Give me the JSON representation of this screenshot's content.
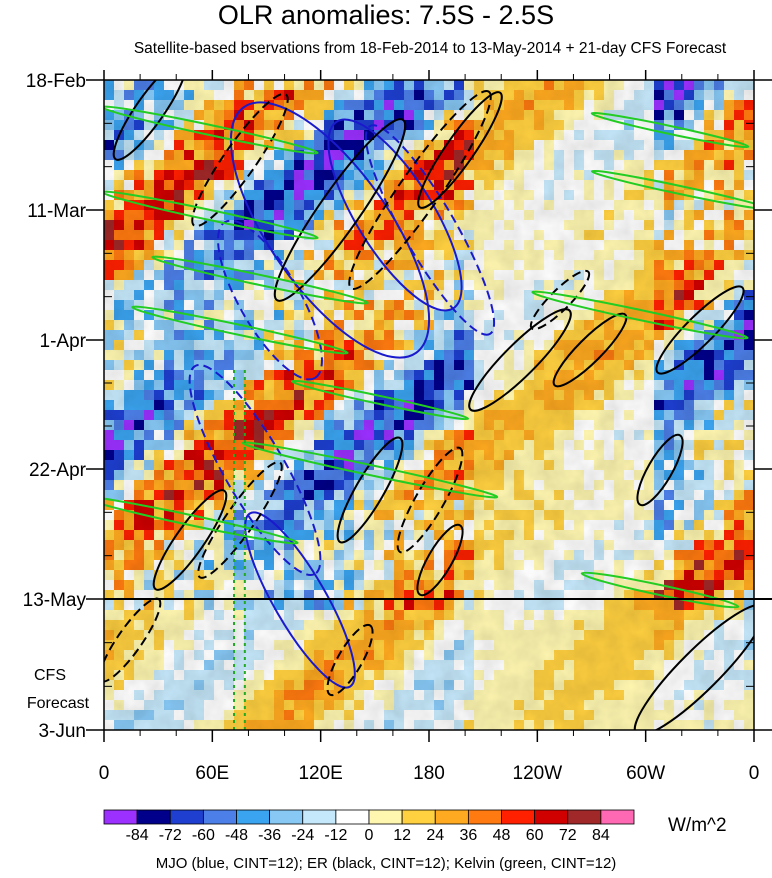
{
  "title": "OLR anomalies: 7.5S - 2.5S",
  "subtitle": "Satellite-based bservations from 18-Feb-2014 to 13-May-2014 + 21-day CFS Forecast",
  "footer": "MJO (blue, CINT=12); ER (black, CINT=12); Kelvin (green, CINT=12)",
  "units": "W/m^2",
  "forecast_label": [
    "CFS",
    "Forecast"
  ],
  "chart_data": {
    "type": "heatmap",
    "title": "OLR anomalies: 7.5S - 2.5S",
    "x_axis": {
      "ticks": [
        "0",
        "60E",
        "120E",
        "180",
        "120W",
        "60W",
        "0"
      ],
      "tick_values": [
        0,
        60,
        120,
        180,
        240,
        300,
        360
      ],
      "range": [
        0,
        360
      ]
    },
    "y_axis": {
      "ticks": [
        "18-Feb",
        "11-Mar",
        "1-Apr",
        "22-Apr",
        "13-May",
        "3-Jun"
      ],
      "range": [
        "2014-02-18",
        "2014-06-03"
      ],
      "reversed": true
    },
    "observation_end": "13-May",
    "colorbar": {
      "labels": [
        "-84",
        "-72",
        "-60",
        "-48",
        "-36",
        "-24",
        "-12",
        "0",
        "12",
        "24",
        "36",
        "48",
        "60",
        "72",
        "84"
      ],
      "colors": [
        "#9b30ff",
        "#00008b",
        "#1e3fd0",
        "#4d7fe8",
        "#3ba4f0",
        "#87c8f5",
        "#c5e8fa",
        "#ffffff",
        "#fff7b0",
        "#ffd040",
        "#ffaa20",
        "#ff7a10",
        "#ff2000",
        "#d00000",
        "#a02828",
        "#ff69b4"
      ]
    },
    "contours": [
      {
        "name": "MJO",
        "color": "#1a1acc",
        "cint": 12
      },
      {
        "name": "ER",
        "color": "#000000",
        "cint": 12
      },
      {
        "name": "Kelvin",
        "color": "#22cc22",
        "cint": 12
      }
    ]
  }
}
